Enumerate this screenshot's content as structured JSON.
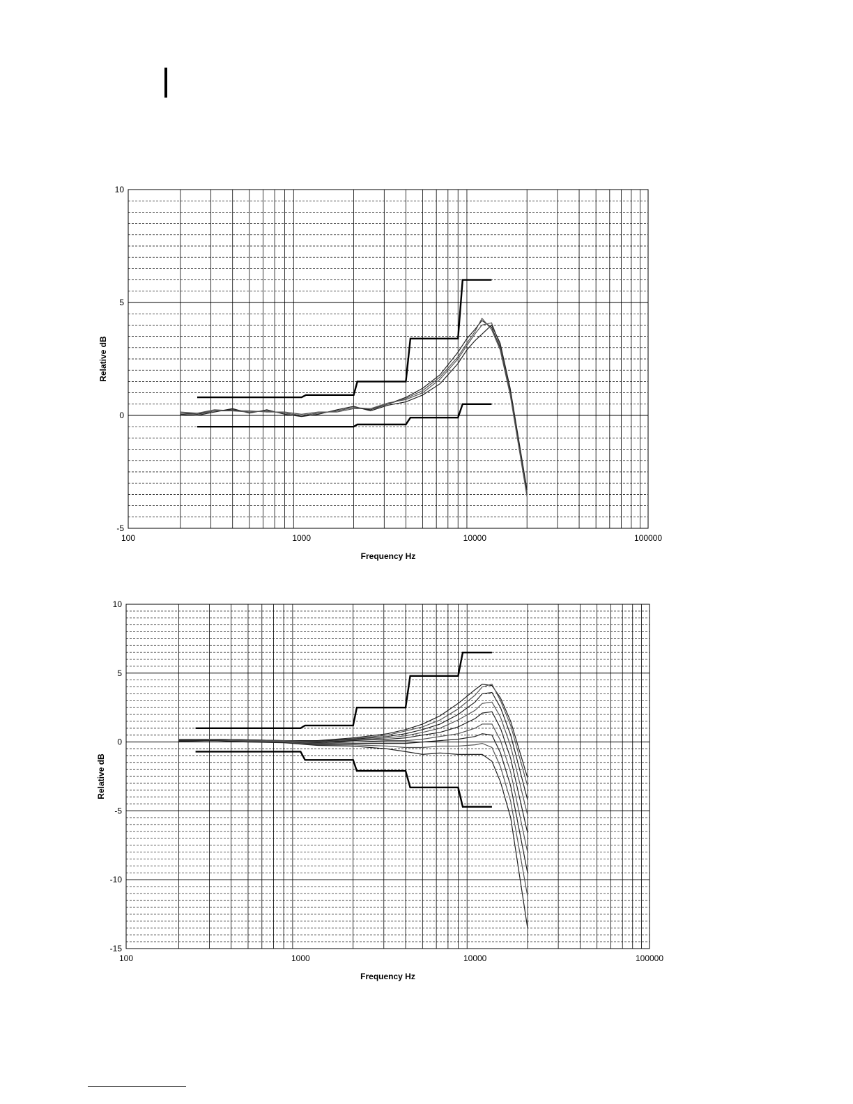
{
  "chart_data": [
    {
      "type": "line",
      "title": "",
      "xlabel": "Frequency Hz",
      "ylabel": "Relative dB",
      "xscale": "log",
      "xlim": [
        100,
        100000
      ],
      "ylim": [
        -5,
        10
      ],
      "x_ticks": [
        "100",
        "1000",
        "10000",
        "100000"
      ],
      "y_ticks": [
        "-5",
        "0",
        "5",
        "10"
      ],
      "y_step_major": 5,
      "y_step_minor": 0.5,
      "grid": true,
      "limit_series": [
        {
          "x": [
            250,
            1000,
            1060,
            2000,
            2100,
            4000,
            4250,
            8000,
            8500,
            12500
          ],
          "y": [
            0.8,
            0.8,
            0.9,
            0.9,
            1.5,
            1.5,
            3.4,
            3.4,
            6.0,
            6.0
          ]
        },
        {
          "x": [
            250,
            2000,
            2100,
            4000,
            4250,
            8000,
            8500,
            12500
          ],
          "y": [
            -0.5,
            -0.5,
            -0.4,
            -0.4,
            -0.1,
            -0.1,
            0.5,
            0.5
          ]
        }
      ],
      "series": [
        {
          "x": [
            200,
            250,
            315,
            400,
            500,
            630,
            800,
            1000,
            1250,
            1600,
            2000,
            2500,
            3150,
            4000,
            5000,
            6300,
            8000,
            9000,
            10000,
            11000,
            12500,
            14000,
            16000,
            20000
          ],
          "y": [
            0.1,
            0.05,
            0.2,
            0.25,
            0.15,
            0.2,
            0.1,
            0.0,
            0.1,
            0.2,
            0.35,
            0.25,
            0.5,
            0.8,
            1.2,
            1.8,
            2.8,
            3.4,
            3.8,
            4.2,
            3.9,
            3.0,
            1.0,
            -3.5
          ]
        },
        {
          "x": [
            200,
            250,
            315,
            400,
            500,
            630,
            800,
            1000,
            1250,
            1600,
            2000,
            2500,
            3150,
            4000,
            5000,
            6300,
            8000,
            9000,
            10000,
            11000,
            12500,
            14000,
            16000,
            20000
          ],
          "y": [
            0.15,
            0.1,
            0.25,
            0.2,
            0.2,
            0.15,
            0.15,
            0.05,
            0.15,
            0.15,
            0.3,
            0.3,
            0.55,
            0.7,
            1.0,
            1.6,
            2.5,
            3.1,
            3.6,
            4.0,
            4.1,
            3.1,
            1.1,
            -3.4
          ]
        },
        {
          "x": [
            200,
            250,
            315,
            400,
            500,
            630,
            800,
            1000,
            1250,
            1600,
            2000,
            2500,
            3150,
            4000,
            5000,
            6300,
            8000,
            9000,
            10000,
            11000,
            12500,
            14000,
            16000,
            20000
          ],
          "y": [
            0.05,
            0.0,
            0.15,
            0.3,
            0.1,
            0.25,
            0.05,
            -0.05,
            0.05,
            0.25,
            0.4,
            0.2,
            0.45,
            0.6,
            0.9,
            1.4,
            2.3,
            2.9,
            3.3,
            3.6,
            4.0,
            3.2,
            1.2,
            -3.3
          ]
        },
        {
          "x": [
            200,
            250,
            315,
            400,
            500,
            630,
            800,
            1000,
            1250,
            1600,
            2000,
            2500,
            3150,
            4000,
            5000,
            6300,
            8000,
            9000,
            10000,
            11000,
            12500,
            14000,
            16000,
            20000
          ],
          "y": [
            0.1,
            0.1,
            0.2,
            0.2,
            0.15,
            0.2,
            0.1,
            0.0,
            0.1,
            0.2,
            0.35,
            0.3,
            0.5,
            0.75,
            1.1,
            1.7,
            2.6,
            3.2,
            3.7,
            4.3,
            3.8,
            2.9,
            0.9,
            -3.6
          ]
        }
      ]
    },
    {
      "type": "line",
      "title": "",
      "xlabel": "Frequency Hz",
      "ylabel": "Relative dB",
      "xscale": "log",
      "xlim": [
        100,
        100000
      ],
      "ylim": [
        -15,
        10
      ],
      "x_ticks": [
        "100",
        "1000",
        "10000",
        "100000"
      ],
      "y_ticks": [
        "-15",
        "-10",
        "-5",
        "0",
        "5",
        "10"
      ],
      "y_step_major": 5,
      "y_step_minor": 0.5,
      "grid": true,
      "limit_series": [
        {
          "x": [
            250,
            1000,
            1060,
            2000,
            2100,
            4000,
            4250,
            8000,
            8500,
            12500
          ],
          "y": [
            1.0,
            1.0,
            1.2,
            1.2,
            2.5,
            2.5,
            4.8,
            4.8,
            6.5,
            6.5
          ]
        },
        {
          "x": [
            250,
            1000,
            1060,
            2000,
            2100,
            4000,
            4250,
            8000,
            8500,
            12500
          ],
          "y": [
            -0.7,
            -0.7,
            -1.3,
            -1.3,
            -2.1,
            -2.1,
            -3.3,
            -3.3,
            -4.7,
            -4.7
          ]
        }
      ],
      "series": [
        {
          "x": [
            200,
            315,
            500,
            800,
            1250,
            2000,
            3150,
            4000,
            5000,
            6300,
            8000,
            10000,
            11000,
            12500,
            14000,
            16000,
            20000
          ],
          "y": [
            0.2,
            0.2,
            0.15,
            0.1,
            0.1,
            0.3,
            0.6,
            0.9,
            1.3,
            1.9,
            2.8,
            3.8,
            4.2,
            4.1,
            3.2,
            1.5,
            -2.6
          ]
        },
        {
          "x": [
            200,
            315,
            500,
            800,
            1250,
            2000,
            3150,
            4000,
            5000,
            6300,
            8000,
            10000,
            11000,
            12500,
            14000,
            16000,
            20000
          ],
          "y": [
            0.2,
            0.2,
            0.15,
            0.1,
            0.05,
            0.25,
            0.5,
            0.8,
            1.1,
            1.6,
            2.4,
            3.4,
            4.0,
            4.2,
            3.0,
            1.2,
            -3.2
          ]
        },
        {
          "x": [
            200,
            315,
            500,
            800,
            1250,
            2000,
            3150,
            4000,
            5000,
            6300,
            8000,
            10000,
            11000,
            12500,
            14000,
            16000,
            20000
          ],
          "y": [
            0.15,
            0.2,
            0.15,
            0.1,
            0.05,
            0.2,
            0.4,
            0.6,
            0.9,
            1.3,
            2.0,
            2.9,
            3.5,
            3.6,
            2.5,
            0.5,
            -4.2
          ]
        },
        {
          "x": [
            200,
            315,
            500,
            800,
            1250,
            2000,
            3150,
            4000,
            5000,
            6300,
            8000,
            10000,
            11000,
            12500,
            14000,
            16000,
            20000
          ],
          "y": [
            0.15,
            0.2,
            0.1,
            0.1,
            0.0,
            0.15,
            0.3,
            0.45,
            0.7,
            1.0,
            1.6,
            2.3,
            2.8,
            2.9,
            1.8,
            -0.3,
            -5.3
          ]
        },
        {
          "x": [
            200,
            315,
            500,
            800,
            1250,
            2000,
            3150,
            4000,
            5000,
            6300,
            8000,
            10000,
            11000,
            12500,
            14000,
            16000,
            20000
          ],
          "y": [
            0.1,
            0.15,
            0.1,
            0.05,
            -0.05,
            0.1,
            0.2,
            0.3,
            0.5,
            0.7,
            1.1,
            1.7,
            2.1,
            2.2,
            1.0,
            -1.2,
            -6.6
          ]
        },
        {
          "x": [
            200,
            315,
            500,
            800,
            1250,
            2000,
            3150,
            4000,
            5000,
            6300,
            8000,
            10000,
            11000,
            12500,
            14000,
            16000,
            20000
          ],
          "y": [
            0.1,
            0.15,
            0.1,
            0.05,
            -0.1,
            0.0,
            0.1,
            0.1,
            0.2,
            0.4,
            0.6,
            1.0,
            1.3,
            1.3,
            0.1,
            -2.2,
            -8.0
          ]
        },
        {
          "x": [
            200,
            315,
            500,
            800,
            1250,
            2000,
            3150,
            4000,
            5000,
            6300,
            8000,
            10000,
            11000,
            12500,
            14000,
            16000,
            20000
          ],
          "y": [
            0.1,
            0.1,
            0.05,
            0.0,
            -0.15,
            -0.1,
            -0.1,
            -0.1,
            0.0,
            0.1,
            0.2,
            0.4,
            0.6,
            0.5,
            -0.8,
            -3.2,
            -9.5
          ]
        },
        {
          "x": [
            200,
            315,
            500,
            800,
            1250,
            2000,
            3150,
            4000,
            5000,
            6300,
            8000,
            10000,
            11000,
            12500,
            14000,
            16000,
            20000
          ],
          "y": [
            0.05,
            0.1,
            0.05,
            0.0,
            -0.2,
            -0.2,
            -0.3,
            -0.4,
            -0.4,
            -0.3,
            -0.3,
            -0.2,
            -0.1,
            -0.4,
            -1.8,
            -4.3,
            -11.2
          ]
        },
        {
          "x": [
            200,
            315,
            500,
            800,
            1250,
            2000,
            3150,
            4000,
            5000,
            6300,
            8000,
            10000,
            11000,
            12500,
            14000,
            16000,
            20000
          ],
          "y": [
            0.05,
            0.1,
            0.0,
            -0.05,
            -0.25,
            -0.3,
            -0.5,
            -0.7,
            -0.9,
            -0.8,
            -0.9,
            -0.9,
            -0.9,
            -1.4,
            -2.9,
            -5.5,
            -13.5
          ]
        }
      ]
    }
  ]
}
